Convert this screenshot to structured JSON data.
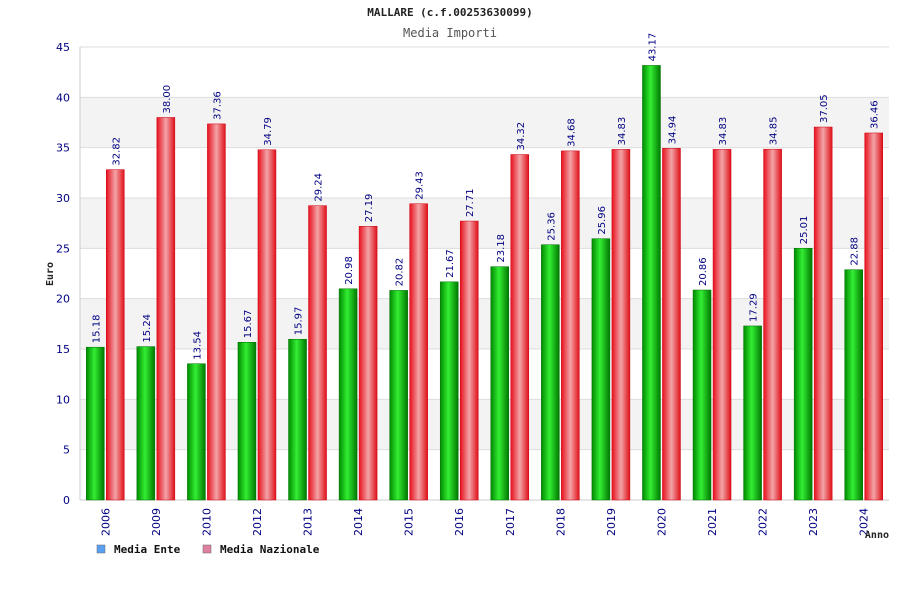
{
  "chart_data": {
    "type": "bar",
    "title": "MALLARE (c.f.00253630099)",
    "subtitle": "Media Importi",
    "ylabel": "Euro",
    "xlabel": "Anno",
    "ylim": [
      0,
      45
    ],
    "yticks": [
      0,
      5,
      10,
      15,
      20,
      25,
      30,
      35,
      40,
      45
    ],
    "grid": true,
    "legend_placement": "bottom-left",
    "categories": [
      "2006",
      "2009",
      "2010",
      "2012",
      "2013",
      "2014",
      "2015",
      "2016",
      "2017",
      "2018",
      "2019",
      "2020",
      "2021",
      "2022",
      "2023",
      "2024"
    ],
    "series": [
      {
        "name": "Media Ente",
        "color": "#00b000",
        "legend_color": "#5aa0f0",
        "values": [
          15.18,
          15.24,
          13.54,
          15.67,
          15.97,
          20.98,
          20.82,
          21.67,
          23.18,
          25.36,
          25.96,
          43.17,
          20.86,
          17.29,
          25.01,
          22.88
        ],
        "labels": [
          "15.18",
          "15.24",
          "13.54",
          "15.67",
          "15.97",
          "20.98",
          "20.82",
          "21.67",
          "23.18",
          "25.36",
          "25.96",
          "43.17",
          "20.86",
          "17.29",
          "25.01",
          "22.88"
        ]
      },
      {
        "name": "Media Nazionale",
        "color": "#ee1c2a",
        "legend_color": "#e080a0",
        "values": [
          32.82,
          38.0,
          37.36,
          34.79,
          29.24,
          27.19,
          29.43,
          27.71,
          34.32,
          34.68,
          34.83,
          34.94,
          34.83,
          34.85,
          37.05,
          36.46
        ],
        "labels": [
          "32.82",
          "38.00",
          "37.36",
          "34.79",
          "29.24",
          "27.19",
          "29.43",
          "27.71",
          "34.32",
          "34.68",
          "34.83",
          "34.94",
          "34.83",
          "34.85",
          "37.05",
          "36.46"
        ]
      }
    ]
  }
}
